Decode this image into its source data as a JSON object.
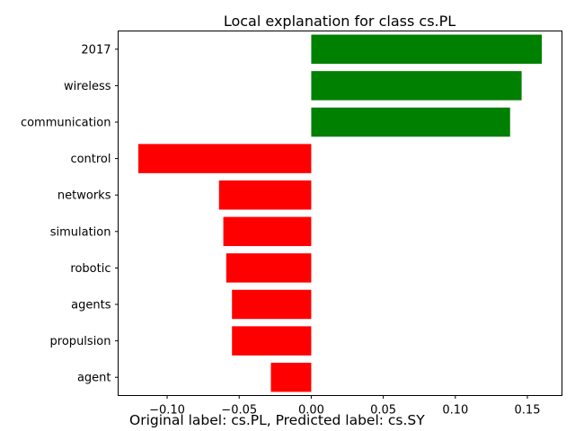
{
  "chart_data": {
    "type": "bar",
    "orientation": "horizontal",
    "title": "Local explanation for class cs.PL",
    "categories": [
      "2017",
      "wireless",
      "communication",
      "control",
      "networks",
      "simulation",
      "robotic",
      "agents",
      "propulsion",
      "agent"
    ],
    "values": [
      0.16,
      0.146,
      0.138,
      -0.12,
      -0.064,
      -0.061,
      -0.059,
      -0.055,
      -0.055,
      -0.028
    ],
    "xlim": [
      -0.134,
      0.174
    ],
    "xticks": [
      -0.1,
      -0.05,
      0.0,
      0.05,
      0.1,
      0.15
    ],
    "xtick_labels": [
      "−0.10",
      "−0.05",
      "0.00",
      "0.05",
      "0.10",
      "0.15"
    ],
    "positive_color": "#008000",
    "negative_color": "#ff0000",
    "grid": false
  },
  "caption": "Original label: cs.PL, Predicted label: cs.SY"
}
